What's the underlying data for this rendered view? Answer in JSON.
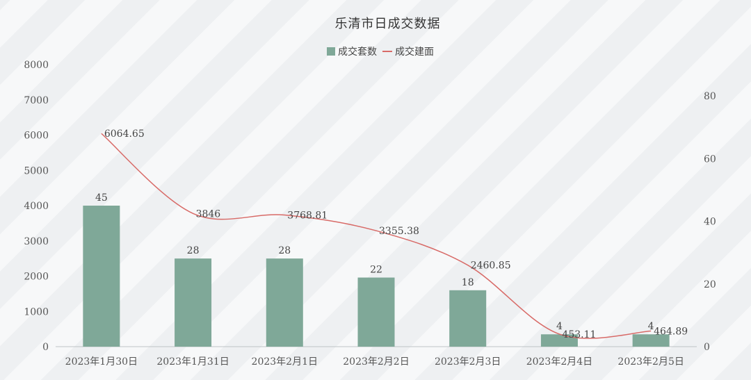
{
  "chart_data": {
    "type": "bar",
    "title": "乐清市日成交数据",
    "categories": [
      "2023年1月30日",
      "2023年1月31日",
      "2023年2月1日",
      "2023年2月2日",
      "2023年2月3日",
      "2023年2月4日",
      "2023年2月5日"
    ],
    "series": [
      {
        "name": "成交套数",
        "type": "bar",
        "axis": "left",
        "values": [
          45,
          28,
          28,
          22,
          18,
          4,
          4
        ],
        "bar_heights_in_left_axis_units": [
          4000,
          2500,
          2500,
          1960,
          1600,
          350,
          350
        ],
        "color": "#7fa898"
      },
      {
        "name": "成交建面",
        "type": "line",
        "axis": "right",
        "values": [
          6064.65,
          3846,
          3768.81,
          3355.38,
          2460.85,
          453.11,
          464.89
        ],
        "labels": [
          "6064.65",
          "3846",
          "3768.81",
          "3355.38",
          "2460.85",
          "453.11",
          "464.89"
        ],
        "plotted_in_right_axis_units": [
          68,
          42.5,
          42,
          37,
          26,
          4,
          5
        ],
        "color": "#d86a67"
      }
    ],
    "left_axis": {
      "ylim": [
        0,
        8000
      ],
      "ticks": [
        0,
        1000,
        2000,
        3000,
        4000,
        5000,
        6000,
        7000,
        8000
      ]
    },
    "right_axis": {
      "ylim": [
        0,
        90
      ],
      "ticks": [
        0,
        20,
        40,
        60,
        80
      ]
    },
    "legend_position": "top-center",
    "grid": false
  }
}
